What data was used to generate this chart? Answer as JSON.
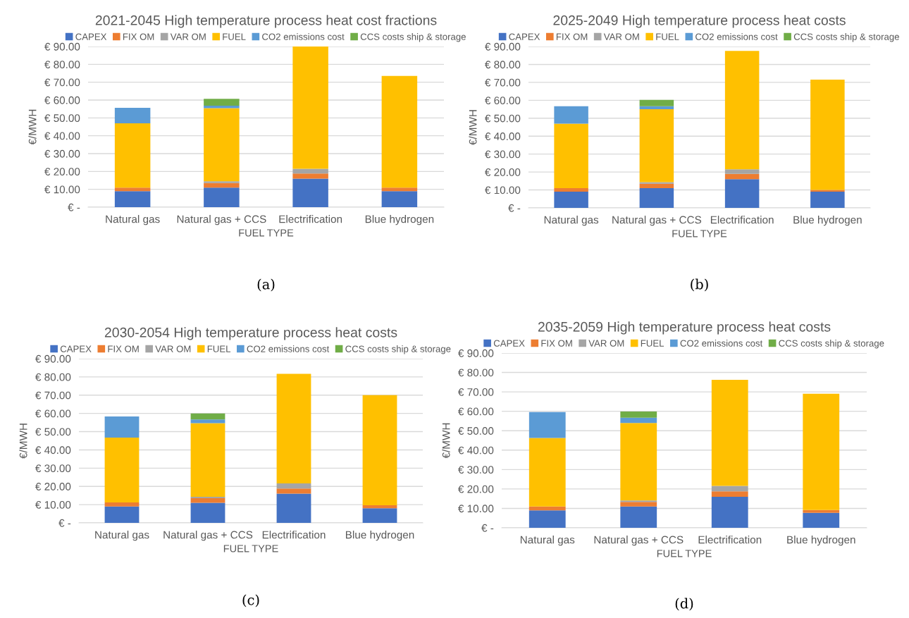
{
  "chart_data": [
    {
      "type": "bar",
      "stacked": true,
      "title": "2021-2045 High temperature process heat cost fractions",
      "xlabel": "FUEL TYPE",
      "ylabel": "€/MWH",
      "legend": "top",
      "grid": "y",
      "annotations": [
        "(a)"
      ],
      "categories": [
        "Natural gas",
        "Natural gas + CCS",
        "Electrification",
        "Blue hydrogen"
      ],
      "ylim": [
        0,
        90
      ],
      "yticks": [
        {
          "value": 0,
          "label": "€ -"
        },
        {
          "value": 10,
          "label": "€ 10.00"
        },
        {
          "value": 20,
          "label": "€ 20.00"
        },
        {
          "value": 30,
          "label": "€ 30.00"
        },
        {
          "value": 40,
          "label": "€ 40.00"
        },
        {
          "value": 50,
          "label": "€ 50.00"
        },
        {
          "value": 60,
          "label": "€ 60.00"
        },
        {
          "value": 70,
          "label": "€ 70.00"
        },
        {
          "value": 80,
          "label": "€ 80.00"
        },
        {
          "value": 90,
          "label": "€ 90.00"
        }
      ],
      "series": [
        {
          "name": "CAPEX",
          "color": "#4472c4",
          "values": [
            9,
            11,
            16,
            9
          ]
        },
        {
          "name": "FIX OM",
          "color": "#ed7d31",
          "values": [
            2,
            2.5,
            2.8,
            2
          ]
        },
        {
          "name": "VAR OM",
          "color": "#a5a5a5",
          "values": [
            0,
            1,
            2.7,
            0
          ]
        },
        {
          "name": "FUEL",
          "color": "#ffc000",
          "values": [
            36,
            41,
            68.5,
            62.5
          ]
        },
        {
          "name": "CO2 emissions cost",
          "color": "#5b9bd5",
          "values": [
            8.7,
            1.3,
            0,
            0
          ]
        },
        {
          "name": "CCS costs ship & storage",
          "color": "#70ad47",
          "values": [
            0,
            3.9,
            0,
            0
          ]
        }
      ]
    },
    {
      "type": "bar",
      "stacked": true,
      "title": "2025-2049 High temperature process heat costs",
      "xlabel": "FUEL TYPE",
      "ylabel": "€/MWH",
      "legend": "top",
      "grid": "y",
      "annotations": [
        "(b)"
      ],
      "categories": [
        "Natural gas",
        "Natural gas + CCS",
        "Electrification",
        "Blue hydrogen"
      ],
      "ylim": [
        0,
        90
      ],
      "yticks": [
        {
          "value": 0,
          "label": "€ -"
        },
        {
          "value": 10,
          "label": "€ 10.00"
        },
        {
          "value": 20,
          "label": "€ 20.00"
        },
        {
          "value": 30,
          "label": "€ 30.00"
        },
        {
          "value": 40,
          "label": "€ 40.00"
        },
        {
          "value": 50,
          "label": "€ 50.00"
        },
        {
          "value": 60,
          "label": "€ 60.00"
        },
        {
          "value": 70,
          "label": "€ 70.00"
        },
        {
          "value": 80,
          "label": "€ 80.00"
        },
        {
          "value": 90,
          "label": "€ 90.00"
        }
      ],
      "series": [
        {
          "name": "CAPEX",
          "color": "#4472c4",
          "values": [
            9,
            11,
            16,
            9
          ]
        },
        {
          "name": "FIX OM",
          "color": "#ed7d31",
          "values": [
            2,
            2.5,
            3,
            1
          ]
        },
        {
          "name": "VAR OM",
          "color": "#a5a5a5",
          "values": [
            0,
            0.8,
            2.5,
            0
          ]
        },
        {
          "name": "FUEL",
          "color": "#ffc000",
          "values": [
            36,
            40.7,
            66,
            61.5
          ]
        },
        {
          "name": "CO2 emissions cost",
          "color": "#5b9bd5",
          "values": [
            9.7,
            1.7,
            0,
            0
          ]
        },
        {
          "name": "CCS costs ship & storage",
          "color": "#70ad47",
          "values": [
            0,
            3.5,
            0,
            0
          ]
        }
      ]
    },
    {
      "type": "bar",
      "stacked": true,
      "title": "2030-2054 High temperature process heat costs",
      "xlabel": "FUEL TYPE",
      "ylabel": "€/MWH",
      "legend": "top",
      "grid": "y",
      "annotations": [
        "(c)"
      ],
      "categories": [
        "Natural gas",
        "Natural gas + CCS",
        "Electrification",
        "Blue hydrogen"
      ],
      "ylim": [
        0,
        90
      ],
      "yticks": [
        {
          "value": 0,
          "label": "€ -"
        },
        {
          "value": 10,
          "label": "€ 10.00"
        },
        {
          "value": 20,
          "label": "€ 20.00"
        },
        {
          "value": 30,
          "label": "€ 30.00"
        },
        {
          "value": 40,
          "label": "€ 40.00"
        },
        {
          "value": 50,
          "label": "€ 50.00"
        },
        {
          "value": 60,
          "label": "€ 60.00"
        },
        {
          "value": 70,
          "label": "€ 70.00"
        },
        {
          "value": 80,
          "label": "€ 80.00"
        },
        {
          "value": 90,
          "label": "€ 90.00"
        }
      ],
      "series": [
        {
          "name": "CAPEX",
          "color": "#4472c4",
          "values": [
            9,
            11,
            16,
            8
          ]
        },
        {
          "name": "FIX OM",
          "color": "#ed7d31",
          "values": [
            2.2,
            2.5,
            2.8,
            1.7
          ]
        },
        {
          "name": "VAR OM",
          "color": "#a5a5a5",
          "values": [
            0,
            0.8,
            2.8,
            0
          ]
        },
        {
          "name": "FUEL",
          "color": "#ffc000",
          "values": [
            35.5,
            40.4,
            60.1,
            60.3
          ]
        },
        {
          "name": "CO2 emissions cost",
          "color": "#5b9bd5",
          "values": [
            11.6,
            2,
            0,
            0
          ]
        },
        {
          "name": "CCS costs ship & storage",
          "color": "#70ad47",
          "values": [
            0,
            3.3,
            0,
            0
          ]
        }
      ]
    },
    {
      "type": "bar",
      "stacked": true,
      "title": "2035-2059 High temperature process heat costs",
      "xlabel": "FUEL TYPE",
      "ylabel": "€/MWH",
      "legend": "top",
      "grid": "y",
      "annotations": [
        "(d)"
      ],
      "categories": [
        "Natural gas",
        "Natural gas + CCS",
        "Electrification",
        "Blue hydrogen"
      ],
      "ylim": [
        0,
        90
      ],
      "yticks": [
        {
          "value": 0,
          "label": "€ -"
        },
        {
          "value": 10,
          "label": "€ 10.00"
        },
        {
          "value": 20,
          "label": "€ 20.00"
        },
        {
          "value": 30,
          "label": "€ 30.00"
        },
        {
          "value": 40,
          "label": "€ 40.00"
        },
        {
          "value": 50,
          "label": "€ 50.00"
        },
        {
          "value": 60,
          "label": "€ 60.00"
        },
        {
          "value": 70,
          "label": "€ 70.00"
        },
        {
          "value": 80,
          "label": "€ 80.00"
        },
        {
          "value": 90,
          "label": "€ 90.00"
        }
      ],
      "series": [
        {
          "name": "CAPEX",
          "color": "#4472c4",
          "values": [
            9,
            11,
            16,
            7.7
          ]
        },
        {
          "name": "FIX OM",
          "color": "#ed7d31",
          "values": [
            2,
            2.3,
            2.8,
            1.5
          ]
        },
        {
          "name": "VAR OM",
          "color": "#a5a5a5",
          "values": [
            0,
            0.8,
            2.8,
            0
          ]
        },
        {
          "name": "FUEL",
          "color": "#ffc000",
          "values": [
            35.3,
            39.9,
            54.6,
            59.8
          ]
        },
        {
          "name": "CO2 emissions cost",
          "color": "#5b9bd5",
          "values": [
            13.3,
            2.7,
            0,
            0
          ]
        },
        {
          "name": "CCS costs ship & storage",
          "color": "#70ad47",
          "values": [
            0,
            3.2,
            0,
            0
          ]
        }
      ]
    }
  ]
}
